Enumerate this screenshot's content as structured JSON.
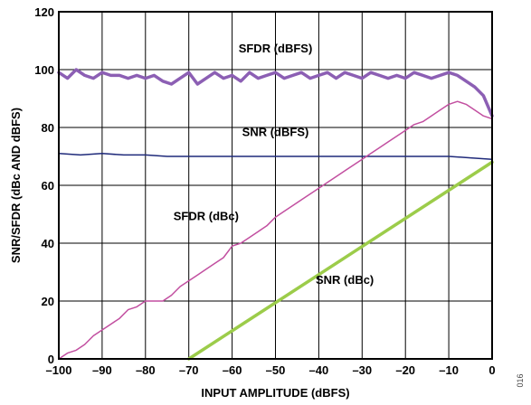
{
  "chart_data": {
    "type": "line",
    "xlabel": "INPUT AMPLITUDE (dBFS)",
    "ylabel": "SNR/SFDR (dBc AND dBFS)",
    "xlim": [
      -100,
      0
    ],
    "ylim": [
      0,
      120
    ],
    "x_ticks": [
      -100,
      -90,
      -80,
      -70,
      -60,
      -50,
      -40,
      -30,
      -20,
      -10,
      0
    ],
    "x_tick_labels": [
      "–100",
      "–90",
      "–80",
      "–70",
      "–60",
      "–50",
      "–40",
      "–30",
      "–20",
      "–10",
      "0"
    ],
    "y_ticks": [
      0,
      20,
      40,
      60,
      80,
      100,
      120
    ],
    "y_tick_labels": [
      "0",
      "20",
      "40",
      "60",
      "80",
      "100",
      "120"
    ],
    "grid": true,
    "figure_id": "016",
    "series": [
      {
        "name": "SFDR (dBFS)",
        "color": "#8c5fb4",
        "x": [
          -100,
          -98,
          -96,
          -94,
          -92,
          -90,
          -88,
          -86,
          -84,
          -82,
          -80,
          -78,
          -76,
          -74,
          -72,
          -70,
          -68,
          -66,
          -64,
          -62,
          -60,
          -58,
          -56,
          -54,
          -52,
          -50,
          -48,
          -46,
          -44,
          -42,
          -40,
          -38,
          -36,
          -34,
          -32,
          -30,
          -28,
          -26,
          -24,
          -22,
          -20,
          -18,
          -16,
          -14,
          -12,
          -10,
          -8,
          -6,
          -4,
          -2,
          0
        ],
        "y": [
          99,
          97,
          100,
          98,
          97,
          99,
          98,
          98,
          97,
          98,
          97,
          98,
          96,
          95,
          97,
          99,
          95,
          97,
          99,
          97,
          98,
          96,
          99,
          97,
          98,
          99,
          97,
          98,
          99,
          97,
          98,
          99,
          97,
          99,
          98,
          97,
          99,
          98,
          97,
          98,
          97,
          99,
          98,
          97,
          98,
          99,
          98,
          96,
          94,
          91,
          84
        ]
      },
      {
        "name": "SNR (dBFS)",
        "color": "#1f2a7a",
        "x": [
          -100,
          -95,
          -90,
          -85,
          -80,
          -75,
          -70,
          -65,
          -60,
          -55,
          -50,
          -45,
          -40,
          -35,
          -30,
          -25,
          -20,
          -15,
          -10,
          -5,
          0
        ],
        "y": [
          71,
          70.5,
          71,
          70.5,
          70.5,
          70,
          70,
          70,
          70,
          70,
          70,
          70,
          70,
          70,
          70,
          70,
          70,
          70,
          70,
          69.5,
          69
        ]
      },
      {
        "name": "SFDR (dBc)",
        "color": "#c24fa0",
        "x": [
          -100,
          -98,
          -96,
          -94,
          -92,
          -90,
          -88,
          -86,
          -84,
          -82,
          -80,
          -78,
          -76,
          -74,
          -72,
          -70,
          -68,
          -66,
          -64,
          -62,
          -60,
          -58,
          -56,
          -54,
          -52,
          -50,
          -48,
          -46,
          -44,
          -42,
          -40,
          -38,
          -36,
          -34,
          -32,
          -30,
          -28,
          -26,
          -24,
          -22,
          -20,
          -18,
          -16,
          -14,
          -12,
          -10,
          -8,
          -6,
          -4,
          -2,
          0
        ],
        "y": [
          0,
          2,
          3,
          5,
          8,
          10,
          12,
          14,
          17,
          18,
          20,
          20,
          20,
          22,
          25,
          27,
          29,
          31,
          33,
          35,
          39,
          40,
          42,
          44,
          46,
          49,
          51,
          53,
          55,
          57,
          59,
          61,
          63,
          65,
          67,
          69,
          71,
          73,
          75,
          77,
          79,
          81,
          82,
          84,
          86,
          88,
          89,
          88,
          86,
          84,
          83
        ]
      },
      {
        "name": "SNR (dBc)",
        "color": "#9ccc4a",
        "x": [
          -70,
          0
        ],
        "y": [
          0,
          68
        ]
      }
    ]
  }
}
